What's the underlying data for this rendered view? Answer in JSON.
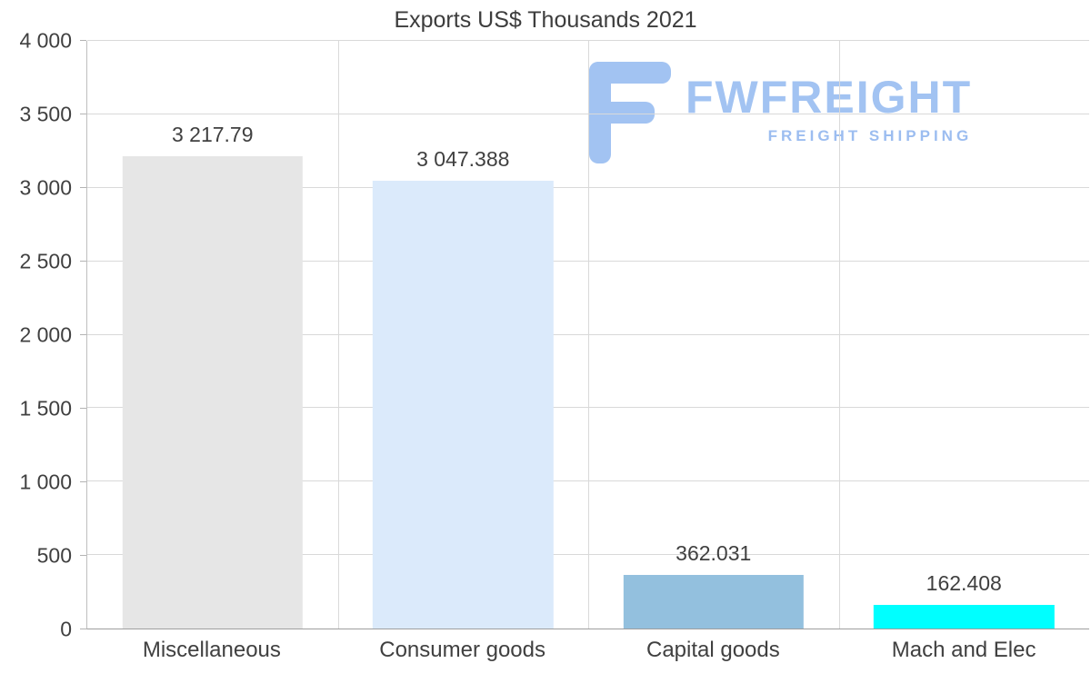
{
  "title": "Exports US$ Thousands 2021",
  "logo": {
    "brand": "FWFREIGHT",
    "tagline": "FREIGHT SHIPPING",
    "color": "#a2c3f2"
  },
  "colors": {
    "grid": "#d9d9d9",
    "axis": "#bfbfbf",
    "text": "#404040",
    "background": "#ffffff"
  },
  "chart_data": {
    "type": "bar",
    "title": "Exports US$ Thousands 2021",
    "categories": [
      "Miscellaneous",
      "Consumer goods",
      "Capital goods",
      "Mach and Elec"
    ],
    "values": [
      3217.79,
      3047.388,
      362.031,
      162.408
    ],
    "value_labels": [
      "3 217.79",
      "3 047.388",
      "362.031",
      "162.408"
    ],
    "bar_colors": [
      "#e6e6e6",
      "#dbeafb",
      "#93c0de",
      "#00ffff"
    ],
    "xlabel": "",
    "ylabel": "",
    "ylim": [
      0,
      4000
    ],
    "yticks": [
      0,
      500,
      1000,
      1500,
      2000,
      2500,
      3000,
      3500,
      4000
    ],
    "ytick_labels": [
      "0",
      "500",
      "1 000",
      "1 500",
      "2 000",
      "2 500",
      "3 000",
      "3 500",
      "4 000"
    ],
    "grid": true,
    "legend": false
  }
}
